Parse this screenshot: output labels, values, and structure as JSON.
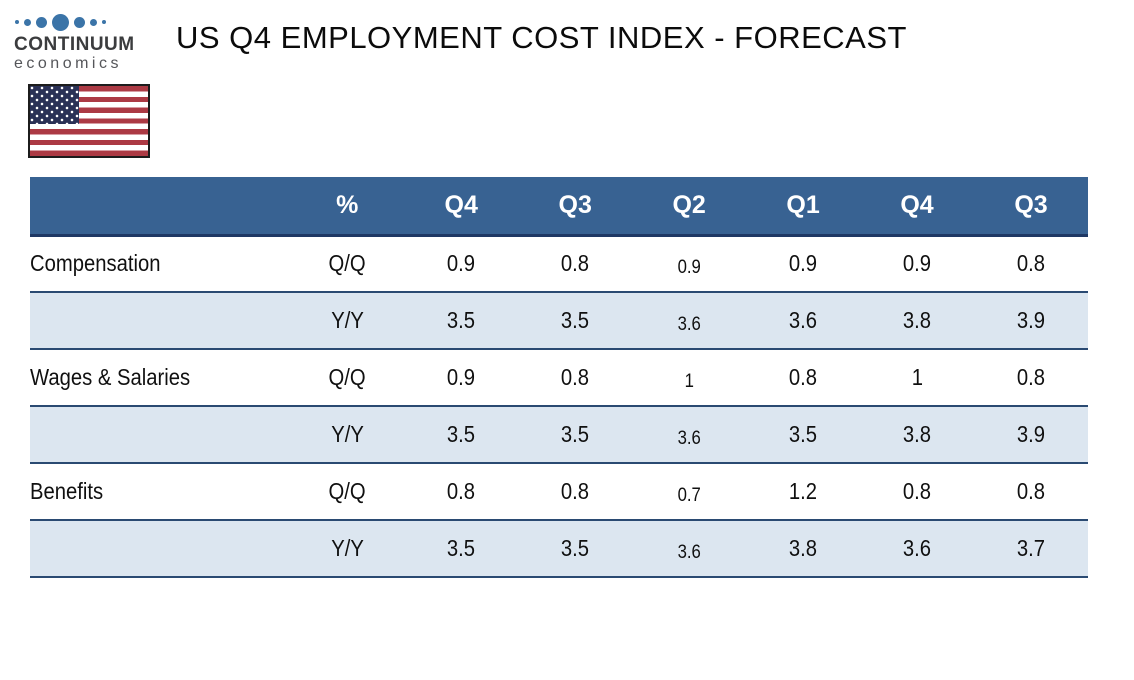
{
  "title": "US Q4 EMPLOYMENT COST INDEX - FORECAST",
  "logo": {
    "name": "CONTINUUM",
    "subtitle": "economics",
    "dot_color": "#3b74a8",
    "text_color": "#3b3c3e"
  },
  "flag": {
    "country": "United States"
  },
  "table": {
    "unit_header": "%",
    "quarter_headers": [
      "Q4",
      "Q3",
      "Q2",
      "Q1",
      "Q4",
      "Q3"
    ],
    "header_bg": "#386292",
    "header_text_color": "#ffffff",
    "shaded_row_bg": "#dce6f0",
    "row_border_color": "#2a4a72",
    "rows": [
      {
        "label": "Compensation",
        "measure": "Q/Q",
        "values": [
          "0.9",
          "0.8",
          "0.9",
          "0.9",
          "0.9",
          "0.8"
        ]
      },
      {
        "label": "",
        "measure": "Y/Y",
        "values": [
          "3.5",
          "3.5",
          "3.6",
          "3.6",
          "3.8",
          "3.9"
        ]
      },
      {
        "label": "Wages & Salaries",
        "measure": "Q/Q",
        "values": [
          "0.9",
          "0.8",
          "1",
          "0.8",
          "1",
          "0.8"
        ]
      },
      {
        "label": "",
        "measure": "Y/Y",
        "values": [
          "3.5",
          "3.5",
          "3.6",
          "3.5",
          "3.8",
          "3.9"
        ]
      },
      {
        "label": "Benefits",
        "measure": "Q/Q",
        "values": [
          "0.8",
          "0.8",
          "0.7",
          "1.2",
          "0.8",
          "0.8"
        ]
      },
      {
        "label": "",
        "measure": "Y/Y",
        "values": [
          "3.5",
          "3.5",
          "3.6",
          "3.8",
          "3.6",
          "3.7"
        ]
      }
    ]
  },
  "chart_data": {
    "type": "table",
    "title": "US Q4 EMPLOYMENT COST INDEX - FORECAST",
    "columns": [
      "%",
      "Q4",
      "Q3",
      "Q2",
      "Q1",
      "Q4",
      "Q3"
    ],
    "rows": [
      {
        "label": "Compensation",
        "measure": "Q/Q",
        "values": [
          0.9,
          0.8,
          0.9,
          0.9,
          0.9,
          0.8
        ]
      },
      {
        "label": "Compensation",
        "measure": "Y/Y",
        "values": [
          3.5,
          3.5,
          3.6,
          3.6,
          3.8,
          3.9
        ]
      },
      {
        "label": "Wages & Salaries",
        "measure": "Q/Q",
        "values": [
          0.9,
          0.8,
          1.0,
          0.8,
          1.0,
          0.8
        ]
      },
      {
        "label": "Wages & Salaries",
        "measure": "Y/Y",
        "values": [
          3.5,
          3.5,
          3.6,
          3.5,
          3.8,
          3.9
        ]
      },
      {
        "label": "Benefits",
        "measure": "Q/Q",
        "values": [
          0.8,
          0.8,
          0.7,
          1.2,
          0.8,
          0.8
        ]
      },
      {
        "label": "Benefits",
        "measure": "Y/Y",
        "values": [
          3.5,
          3.5,
          3.6,
          3.8,
          3.6,
          3.7
        ]
      }
    ]
  }
}
